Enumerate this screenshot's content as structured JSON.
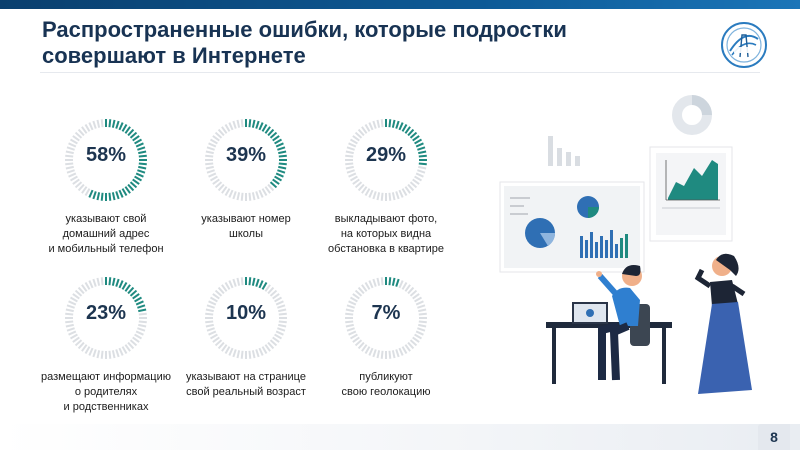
{
  "title": "Распространенные ошибки, которые подростки совершают в Интернете",
  "page_number": "8",
  "stats": [
    {
      "value": "58%",
      "fraction": 0.58,
      "label": "указывают свой\nдомашний адрес\nи мобильный телефон"
    },
    {
      "value": "39%",
      "fraction": 0.39,
      "label": "указывают номер\nшколы"
    },
    {
      "value": "29%",
      "fraction": 0.29,
      "label": "выкладывают фото,\nна которых видна\nобстановка в квартире"
    },
    {
      "value": "23%",
      "fraction": 0.23,
      "label": "размещают информацию\nо родителях\nи родственниках"
    },
    {
      "value": "10%",
      "fraction": 0.1,
      "label": "указывают на странице\nсвой реальный возраст"
    },
    {
      "value": "7%",
      "fraction": 0.07,
      "label": "публикуют\nсвою геолокацию"
    }
  ],
  "colors": {
    "accent": "#1f8a80",
    "ring_track": "#dcdfe3",
    "title": "#183353",
    "top_bar": "#0d5a96"
  },
  "icons": {
    "logo": "organization-logo"
  }
}
